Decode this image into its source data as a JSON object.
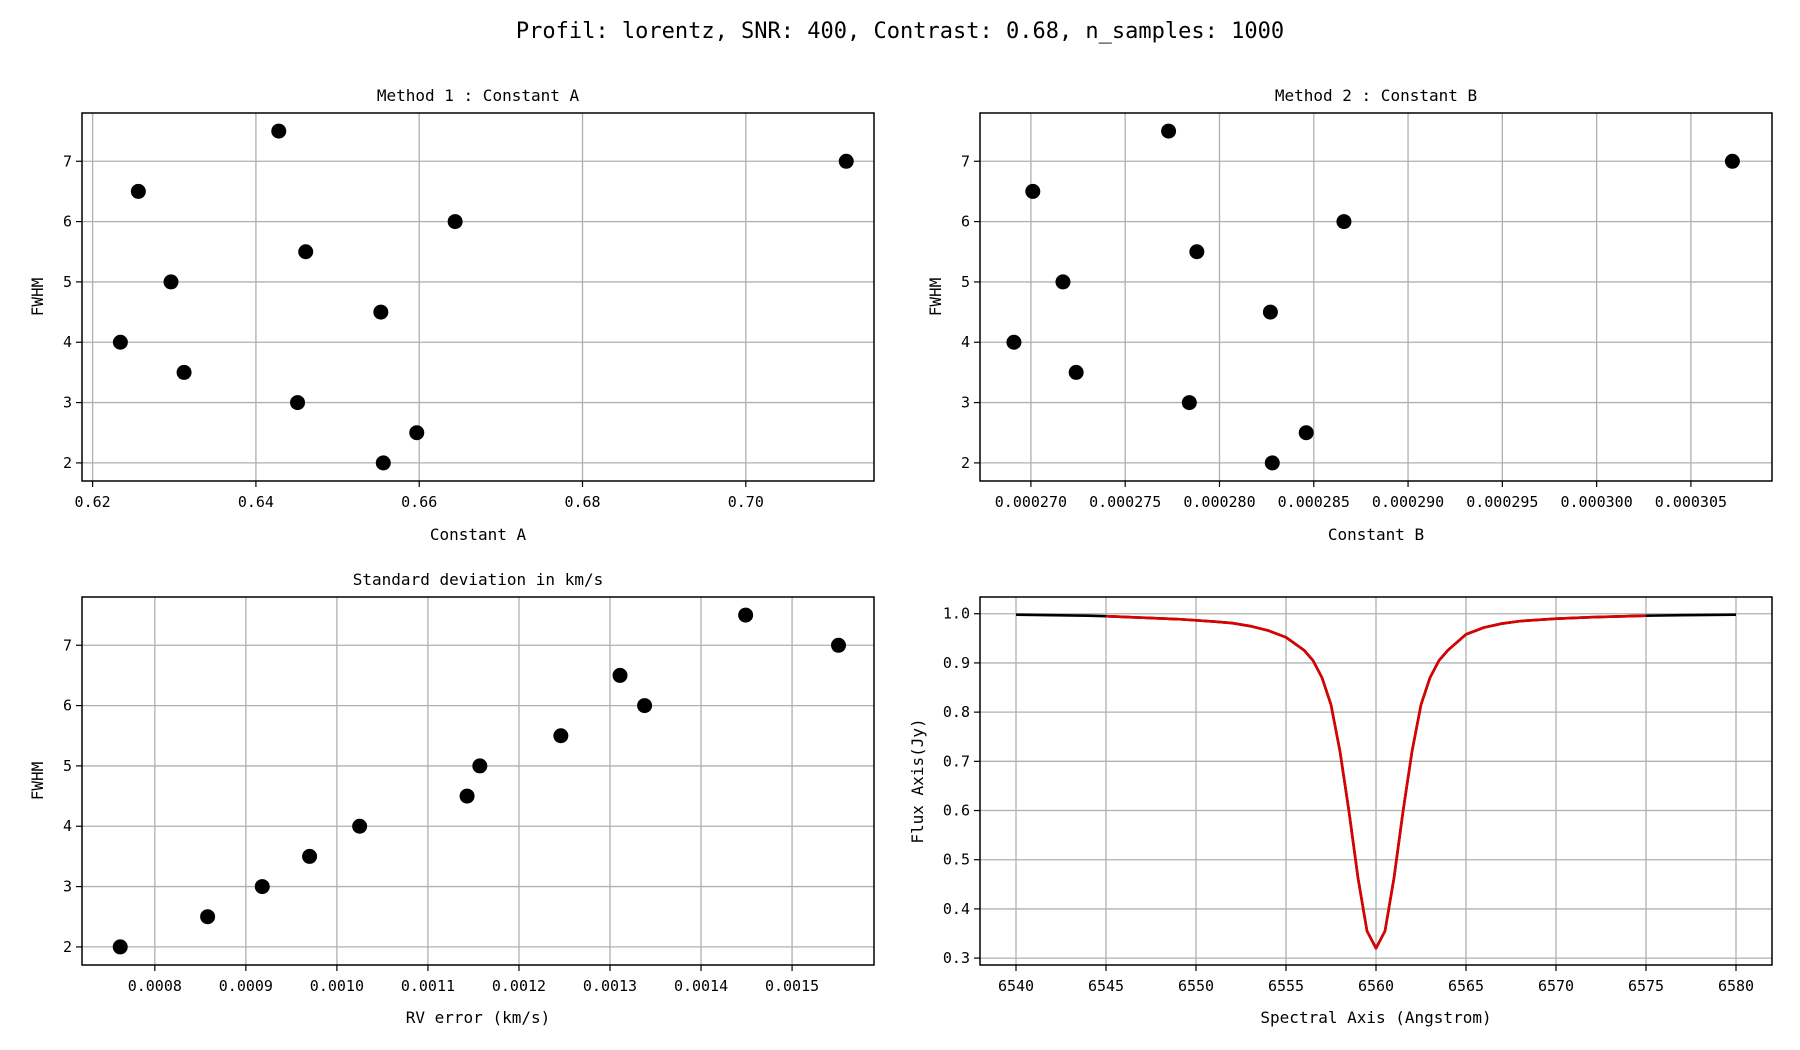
{
  "figure_title": "Profil: lorentz, SNR: 400, Contrast: 0.68, n_samples: 1000",
  "colors": {
    "points": "#000000",
    "full_spectrum": "#000000",
    "fit_region": "#dd0000",
    "grid": "#b0b0b0"
  },
  "chart_data": [
    {
      "type": "scatter",
      "title": "Method 1 : Constant A",
      "xlabel": "Constant A",
      "ylabel": "FWHM",
      "xlim": [
        0.6187,
        0.7157
      ],
      "ylim": [
        1.7,
        7.8
      ],
      "xticks": [
        0.62,
        0.64,
        0.66,
        0.68,
        0.7
      ],
      "xtick_labels": [
        "0.62",
        "0.64",
        "0.66",
        "0.68",
        "0.70"
      ],
      "yticks": [
        2,
        3,
        4,
        5,
        6,
        7
      ],
      "ytick_labels": [
        "2",
        "3",
        "4",
        "5",
        "6",
        "7"
      ],
      "grid": true,
      "points": [
        {
          "x": 0.6234,
          "y": 4.0
        },
        {
          "x": 0.6256,
          "y": 6.5
        },
        {
          "x": 0.6296,
          "y": 5.0
        },
        {
          "x": 0.6312,
          "y": 3.5
        },
        {
          "x": 0.6428,
          "y": 7.5
        },
        {
          "x": 0.6451,
          "y": 3.0
        },
        {
          "x": 0.6461,
          "y": 5.5
        },
        {
          "x": 0.6553,
          "y": 4.5
        },
        {
          "x": 0.6556,
          "y": 2.0
        },
        {
          "x": 0.6597,
          "y": 2.5
        },
        {
          "x": 0.6644,
          "y": 6.0
        },
        {
          "x": 0.7123,
          "y": 7.0
        }
      ]
    },
    {
      "type": "scatter",
      "title": "Method 2 : Constant B",
      "xlabel": "Constant B",
      "ylabel": "FWHM",
      "xlim": [
        0.0002673,
        0.0003093
      ],
      "ylim": [
        1.7,
        7.8
      ],
      "xticks": [
        0.00027,
        0.000275,
        0.00028,
        0.000285,
        0.00029,
        0.000295,
        0.0003,
        0.000305
      ],
      "xtick_labels": [
        "0.000270",
        "0.000275",
        "0.000280",
        "0.000285",
        "0.000290",
        "0.000295",
        "0.000300",
        "0.000305"
      ],
      "yticks": [
        2,
        3,
        4,
        5,
        6,
        7
      ],
      "ytick_labels": [
        "2",
        "3",
        "4",
        "5",
        "6",
        "7"
      ],
      "grid": true,
      "points": [
        {
          "x": 0.0002691,
          "y": 4.0
        },
        {
          "x": 0.0002701,
          "y": 6.5
        },
        {
          "x": 0.0002717,
          "y": 5.0
        },
        {
          "x": 0.0002724,
          "y": 3.5
        },
        {
          "x": 0.0002773,
          "y": 7.5
        },
        {
          "x": 0.0002784,
          "y": 3.0
        },
        {
          "x": 0.0002788,
          "y": 5.5
        },
        {
          "x": 0.0002827,
          "y": 4.5
        },
        {
          "x": 0.0002828,
          "y": 2.0
        },
        {
          "x": 0.0002846,
          "y": 2.5
        },
        {
          "x": 0.0002866,
          "y": 6.0
        },
        {
          "x": 0.0003072,
          "y": 7.0
        }
      ]
    },
    {
      "type": "scatter",
      "title": "Standard deviation in km/s",
      "xlabel": "RV error (km/s)",
      "ylabel": "FWHM",
      "xlim": [
        0.00072,
        0.00159
      ],
      "ylim": [
        1.7,
        7.8
      ],
      "xticks": [
        0.0008,
        0.0009,
        0.001,
        0.0011,
        0.0012,
        0.0013,
        0.0014,
        0.0015
      ],
      "xtick_labels": [
        "0.0008",
        "0.0009",
        "0.0010",
        "0.0011",
        "0.0012",
        "0.0013",
        "0.0014",
        "0.0015"
      ],
      "yticks": [
        2,
        3,
        4,
        5,
        6,
        7
      ],
      "ytick_labels": [
        "2",
        "3",
        "4",
        "5",
        "6",
        "7"
      ],
      "grid": true,
      "points": [
        {
          "x": 0.000762,
          "y": 2.0
        },
        {
          "x": 0.000858,
          "y": 2.5
        },
        {
          "x": 0.000918,
          "y": 3.0
        },
        {
          "x": 0.00097,
          "y": 3.5
        },
        {
          "x": 0.001025,
          "y": 4.0
        },
        {
          "x": 0.001143,
          "y": 4.5
        },
        {
          "x": 0.001157,
          "y": 5.0
        },
        {
          "x": 0.001246,
          "y": 5.5
        },
        {
          "x": 0.001311,
          "y": 6.5
        },
        {
          "x": 0.001338,
          "y": 6.0
        },
        {
          "x": 0.001449,
          "y": 7.5
        },
        {
          "x": 0.001551,
          "y": 7.0
        }
      ]
    },
    {
      "type": "line",
      "title": "",
      "xlabel": "Spectral Axis (Angstrom)",
      "ylabel": "Flux Axis(Jy)",
      "xlim": [
        6538.0,
        6582.0
      ],
      "ylim": [
        0.286,
        1.034
      ],
      "xticks": [
        6540,
        6545,
        6550,
        6555,
        6560,
        6565,
        6570,
        6575,
        6580
      ],
      "xtick_labels": [
        "6540",
        "6545",
        "6550",
        "6555",
        "6560",
        "6565",
        "6570",
        "6575",
        "6580"
      ],
      "yticks": [
        0.3,
        0.4,
        0.5,
        0.6,
        0.7,
        0.8,
        0.9,
        1.0
      ],
      "ytick_labels": [
        "0.3",
        "0.4",
        "0.5",
        "0.6",
        "0.7",
        "0.8",
        "0.9",
        "1.0"
      ],
      "grid": true,
      "series": [
        {
          "x": [
            6540,
            6542,
            6544,
            6545,
            6547,
            6549,
            6551,
            6552,
            6553,
            6554,
            6555,
            6556,
            6556.5,
            6557,
            6557.5,
            6558,
            6558.5,
            6559,
            6559.5,
            6560,
            6560.5,
            6561,
            6561.5,
            6562,
            6562.5,
            6563,
            6563.5,
            6564,
            6565,
            6566,
            6567,
            6568,
            6570,
            6572,
            6575,
            6577,
            6580
          ],
          "y": [
            0.998,
            0.997,
            0.996,
            0.995,
            0.992,
            0.989,
            0.984,
            0.981,
            0.975,
            0.966,
            0.952,
            0.926,
            0.905,
            0.87,
            0.815,
            0.72,
            0.598,
            0.463,
            0.355,
            0.32,
            0.355,
            0.463,
            0.598,
            0.72,
            0.815,
            0.87,
            0.905,
            0.926,
            0.958,
            0.972,
            0.98,
            0.985,
            0.99,
            0.993,
            0.996,
            0.997,
            0.998
          ]
        },
        {
          "x": [
            6545,
            6547,
            6549,
            6551,
            6552,
            6553,
            6554,
            6555,
            6556,
            6556.5,
            6557,
            6557.5,
            6558,
            6558.5,
            6559,
            6559.5,
            6560,
            6560.5,
            6561,
            6561.5,
            6562,
            6562.5,
            6563,
            6563.5,
            6564,
            6565,
            6566,
            6567,
            6568,
            6570,
            6572,
            6575
          ],
          "y": [
            0.995,
            0.992,
            0.989,
            0.984,
            0.981,
            0.975,
            0.966,
            0.952,
            0.926,
            0.905,
            0.87,
            0.815,
            0.72,
            0.598,
            0.463,
            0.355,
            0.32,
            0.355,
            0.463,
            0.598,
            0.72,
            0.815,
            0.87,
            0.905,
            0.926,
            0.958,
            0.972,
            0.98,
            0.985,
            0.99,
            0.993,
            0.996
          ]
        }
      ]
    }
  ]
}
